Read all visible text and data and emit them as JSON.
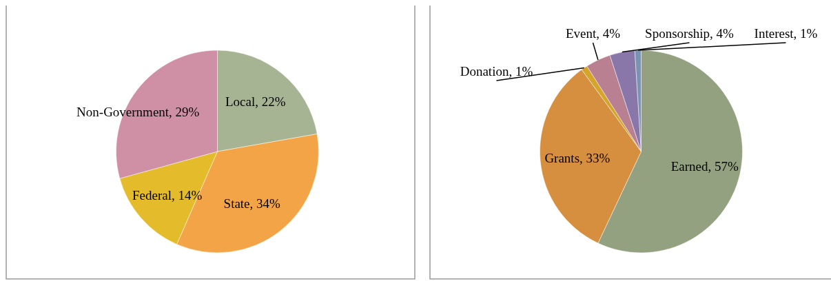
{
  "chart_data": [
    {
      "type": "pie",
      "categories": [
        "Local",
        "State",
        "Federal",
        "Non-Government"
      ],
      "values": [
        22,
        34,
        14,
        29
      ],
      "value_labels": [
        "22%",
        "34%",
        "14%",
        "29%"
      ],
      "colors": [
        "#a6b493",
        "#f2a446",
        "#e4bb2a",
        "#cf90a5"
      ]
    },
    {
      "type": "pie",
      "categories": [
        "Earned",
        "Grants",
        "Donation",
        "Event",
        "Sponsorship",
        "Interest"
      ],
      "values": [
        57,
        33,
        1,
        4,
        4,
        1
      ],
      "value_labels": [
        "57%",
        "33%",
        "1%",
        "4%",
        "4%",
        "1%"
      ],
      "colors": [
        "#93a181",
        "#d68f3e",
        "#d4a52a",
        "#b88090",
        "#8a77aa",
        "#7b93b3"
      ]
    }
  ]
}
